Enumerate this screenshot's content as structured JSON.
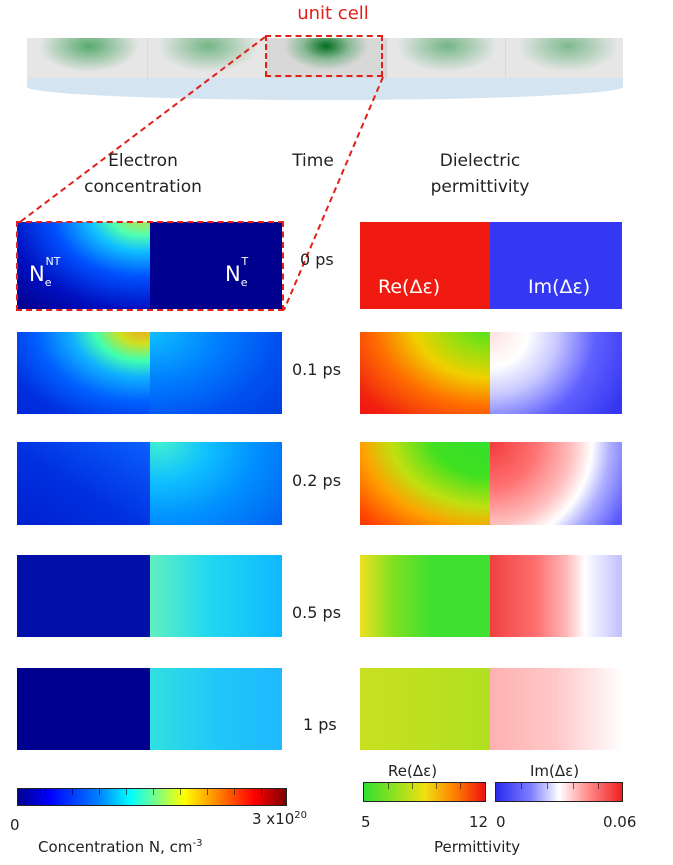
{
  "unit_cell_label": "unit cell",
  "headers": {
    "electron": [
      "Electron",
      "concentration"
    ],
    "time": "Time",
    "dielectric": [
      "Dielectric",
      "permittivity"
    ]
  },
  "times": [
    "0 ps",
    "0.1 ps",
    "0.2 ps",
    "0.5 ps",
    "1 ps"
  ],
  "panel0_labels": {
    "ne_nt_base": "N",
    "ne_nt_sub": "e",
    "ne_nt_sup": "NT",
    "ne_t_base": "N",
    "ne_t_sub": "e",
    "ne_t_sup": "T",
    "re": "Re(Δε)",
    "im": "Im(Δε)"
  },
  "colorbars": {
    "concentration": {
      "min": "0",
      "max": "3 x10",
      "max_exp": "20",
      "label": "Concentration N, cm",
      "label_exp": "-3"
    },
    "re": {
      "title": "Re(Δε)",
      "min": "5",
      "max": "12"
    },
    "im": {
      "title": "Im(Δε)",
      "min": "0",
      "max": "0.06"
    },
    "permittivity_label": "Permittivity"
  },
  "colors": {
    "highlight": "#e0201a",
    "jet_dark": "#00008f",
    "green": "#2a8a3e"
  }
}
